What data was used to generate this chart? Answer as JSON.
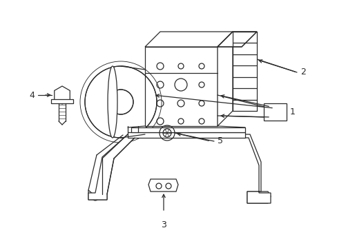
{
  "background_color": "#ffffff",
  "line_color": "#2a2a2a",
  "lw": 0.9,
  "figsize": [
    4.89,
    3.6
  ],
  "dpi": 100
}
